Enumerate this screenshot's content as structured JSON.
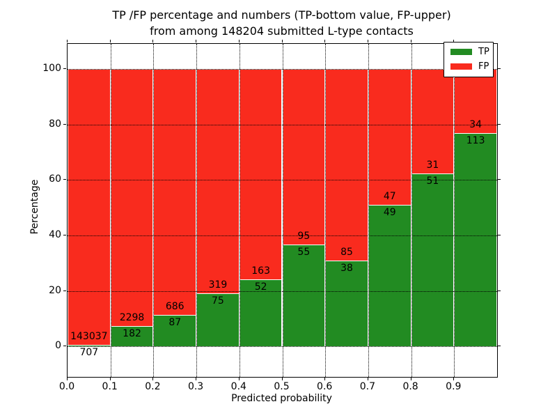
{
  "chart_data": {
    "type": "bar",
    "stacked": true,
    "title_line1": "TP /FP percentage and numbers (TP-bottom value, FP-upper)",
    "title_line2": "from among 148204 submitted L-type contacts",
    "total_submitted": 148204,
    "xlabel": "Predicted probability",
    "ylabel": "Percentage",
    "xlim": [
      0.0,
      1.0
    ],
    "ylim": [
      -11,
      109
    ],
    "bar_width": 0.1,
    "grid": true,
    "legend_position": "upper right",
    "x_tick_values": [
      0.0,
      0.1,
      0.2,
      0.3,
      0.4,
      0.5,
      0.6,
      0.7,
      0.8,
      0.9
    ],
    "x_tick_labels": [
      "0.0",
      "0.1",
      "0.2",
      "0.3",
      "0.4",
      "0.5",
      "0.6",
      "0.7",
      "0.8",
      "0.9"
    ],
    "y_tick_values": [
      0,
      20,
      40,
      60,
      80,
      100
    ],
    "y_tick_labels": [
      "0",
      "20",
      "40",
      "60",
      "80",
      "100"
    ],
    "categories": [
      "0.0-0.1",
      "0.1-0.2",
      "0.2-0.3",
      "0.3-0.4",
      "0.4-0.5",
      "0.5-0.6",
      "0.6-0.7",
      "0.7-0.8",
      "0.8-0.9",
      "0.9-1.0"
    ],
    "series": [
      {
        "name": "TP",
        "position": "bottom",
        "color": "#228b22",
        "counts": [
          707,
          182,
          87,
          75,
          52,
          55,
          38,
          49,
          51,
          113
        ]
      },
      {
        "name": "FP",
        "position": "top",
        "color": "#f92b1e",
        "counts": [
          143037,
          2298,
          686,
          319,
          163,
          95,
          85,
          47,
          31,
          34
        ]
      }
    ],
    "tp_percent": [
      0.49,
      7.34,
      11.25,
      19.04,
      24.19,
      36.67,
      30.89,
      51.04,
      62.2,
      76.87
    ],
    "legend": [
      {
        "name": "TP",
        "color": "#228b22"
      },
      {
        "name": "FP",
        "color": "#f92b1e"
      }
    ]
  }
}
